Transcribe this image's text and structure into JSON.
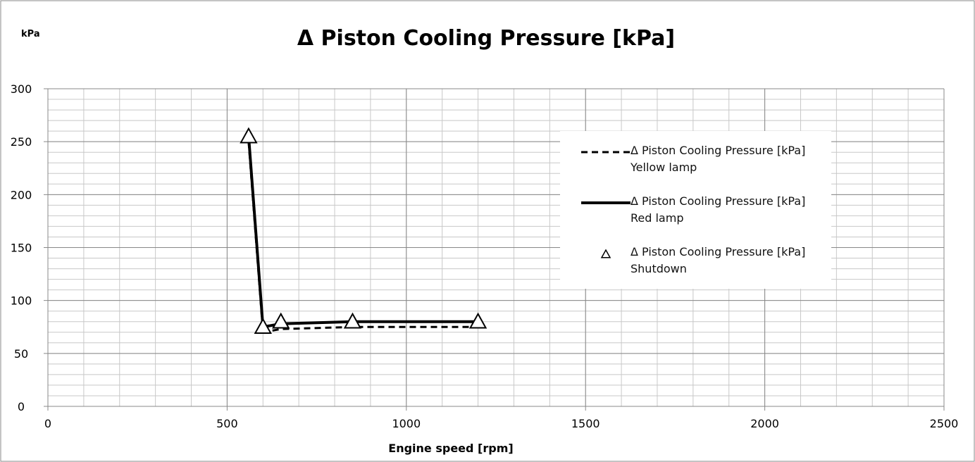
{
  "chart_data": {
    "type": "line",
    "title": "Δ Piston Cooling Pressure [kPa]",
    "y_unit_label": "kPa",
    "xlabel": "Engine speed [rpm]",
    "x": [
      560,
      600,
      650,
      850,
      1200
    ],
    "series": [
      {
        "name": "Δ Piston Cooling Pressure [kPa] Yellow lamp",
        "color": "#000000",
        "style": "dashed",
        "values": [
          250,
          70,
          73,
          75,
          75
        ]
      },
      {
        "name": "Δ Piston Cooling Pressure [kPa] Red lamp",
        "color": "#000000",
        "style": "solid",
        "values": [
          255,
          75,
          78,
          80,
          80
        ]
      },
      {
        "name": "Δ Piston Cooling Pressure [kPa] Shutdown",
        "color": "#000000",
        "style": "triangle-markers",
        "values": [
          255,
          75,
          80,
          80,
          80
        ]
      }
    ],
    "xlim": [
      0,
      2500
    ],
    "xticks": [
      0,
      500,
      1000,
      1500,
      2000,
      2500
    ],
    "ylim": [
      0,
      300
    ],
    "yticks": [
      0,
      50,
      100,
      150,
      200,
      250,
      300
    ],
    "x_minor_step": 100,
    "y_minor_step": 10,
    "grid": true
  }
}
